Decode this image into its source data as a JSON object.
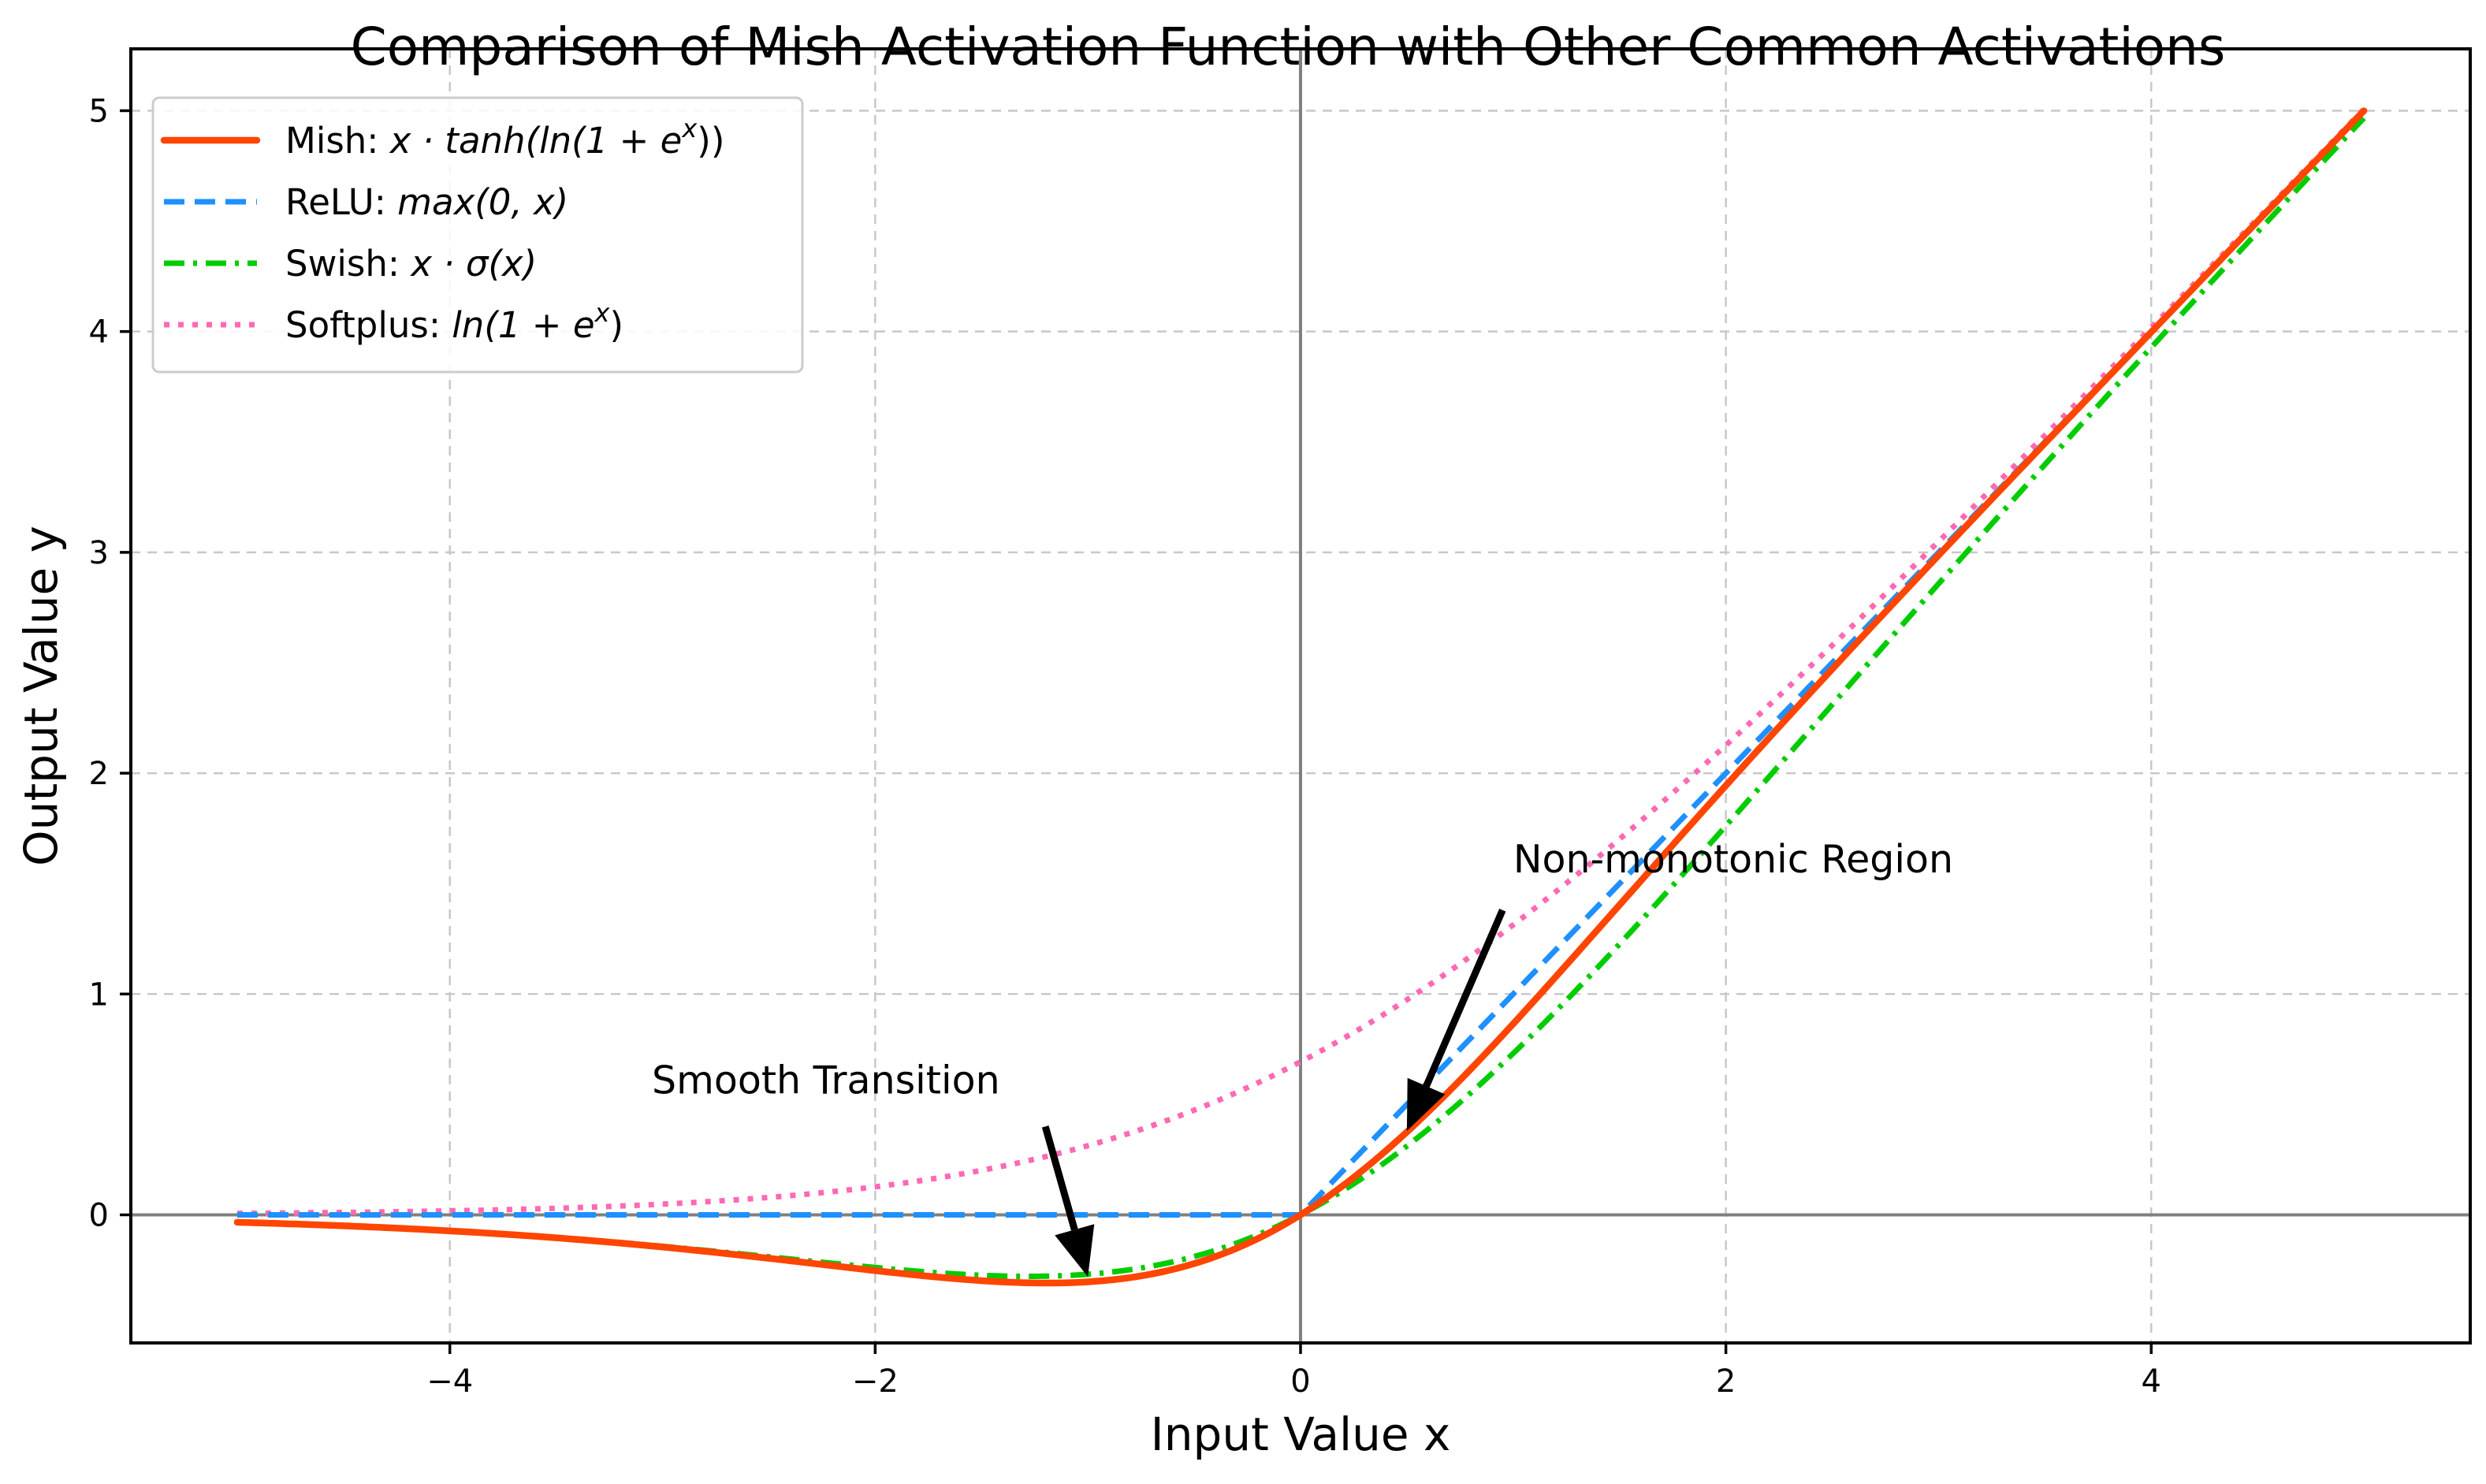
{
  "chart_data": {
    "type": "line",
    "title": "Comparison of Mish Activation Function with Other Common Activations",
    "xlabel": "Input Value x",
    "ylabel": "Output Value y",
    "xlim": [
      -5.5,
      5.5
    ],
    "ylim": [
      -0.58,
      5.28
    ],
    "x_ticks": [
      -4,
      -2,
      0,
      2,
      4
    ],
    "x_tick_labels": [
      "−4",
      "−2",
      "0",
      "2",
      "4"
    ],
    "y_ticks": [
      0,
      1,
      2,
      3,
      4,
      5
    ],
    "y_tick_labels": [
      "0",
      "1",
      "2",
      "3",
      "4",
      "5"
    ],
    "grid": true,
    "legend_position": "top-left",
    "x_range": [
      -5,
      5
    ],
    "series": [
      {
        "name": "Mish",
        "legend_prefix": "Mish: ",
        "legend_math": "x · tanh(ln(1 + e",
        "legend_sup": "x",
        "legend_suffix": "))",
        "function": "mish",
        "color": "#ff4500",
        "style": "solid"
      },
      {
        "name": "ReLU",
        "legend_prefix": "ReLU: ",
        "legend_math": "max(0, x)",
        "legend_sup": "",
        "legend_suffix": "",
        "function": "relu",
        "color": "#1e90ff",
        "style": "dashed"
      },
      {
        "name": "Swish",
        "legend_prefix": "Swish: ",
        "legend_math": "x · σ(x)",
        "legend_sup": "",
        "legend_suffix": "",
        "function": "swish",
        "color": "#00cc00",
        "style": "dashdot"
      },
      {
        "name": "Softplus",
        "legend_prefix": "Softplus: ",
        "legend_math": "ln(1 + e",
        "legend_sup": "x",
        "legend_suffix": ")",
        "function": "softplus",
        "color": "#ff69b4",
        "style": "dotted"
      }
    ],
    "annotations": [
      {
        "text": "Smooth Transition",
        "text_at": [
          -3.05,
          0.55
        ],
        "arrow_tail": [
          -1.2,
          0.4
        ],
        "arrow_head": [
          -1.0,
          -0.28
        ]
      },
      {
        "text": "Non-monotonic Region",
        "text_at": [
          1.0,
          1.55
        ],
        "arrow_tail": [
          0.95,
          1.38
        ],
        "arrow_head": [
          0.5,
          0.38
        ]
      }
    ]
  }
}
